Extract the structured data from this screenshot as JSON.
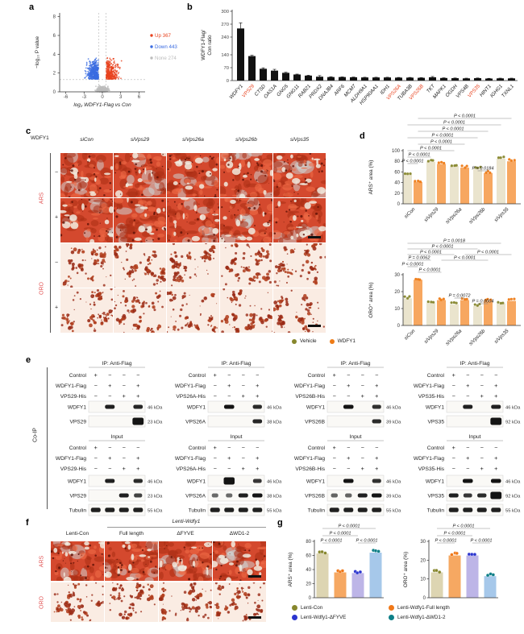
{
  "panels": {
    "a": "a",
    "b": "b",
    "c": "c",
    "d": "d",
    "e": "e",
    "f": "f",
    "g": "g"
  },
  "chart_data": [
    {
      "type": "scatter",
      "name": "volcano",
      "xlabel": "log₂ WDFY1-Flag vs Con",
      "ylabel": "−log₁₀ P value",
      "xlim": [
        -7,
        7
      ],
      "ylim": [
        0,
        8.4
      ],
      "xticks": [
        -6,
        -3,
        0,
        3,
        6
      ],
      "yticks": [
        0,
        2,
        4,
        6,
        8
      ],
      "cutoff_x": [
        -0.6,
        0.6
      ],
      "cutoff_y": 1.3,
      "groups": [
        {
          "label": "Up 367",
          "n": 367,
          "color": "#e8431f"
        },
        {
          "label": "Down 443",
          "n": 443,
          "color": "#3a6be1"
        },
        {
          "label": "None 274",
          "n": 274,
          "color": "#bdbdbd"
        }
      ]
    },
    {
      "type": "bar",
      "name": "ip-ms-ratio",
      "ylabel_lines": [
        "WDFY1-Flag/",
        "Con ratio"
      ],
      "yticks_lower": [
        0,
        70,
        140
      ],
      "yticks_upper": [
        240,
        270,
        300
      ],
      "bar_color": "#111111",
      "categories": [
        "WDFY1",
        "VPS29",
        "CTSD",
        "OAS1A",
        "GNG5",
        "GNG11",
        "RAB21",
        "PRDX2",
        "DNAJB4",
        "ARF6",
        "MCM7",
        "ALDH9A1",
        "HSP90AA1",
        "IDH1",
        "VPS26A",
        "TUBA3B",
        "VPS26B",
        "TKT",
        "MAPK1",
        "OGDH",
        "VPS4B",
        "VPS35",
        "HINT1",
        "IGHG1",
        "TXNL1"
      ],
      "values": [
        260,
        133,
        64,
        54,
        42,
        33,
        27,
        21,
        19,
        19,
        18,
        17,
        17,
        17,
        16,
        16,
        15,
        18,
        14,
        13,
        12,
        13,
        11,
        12,
        12
      ],
      "errors": [
        13,
        4,
        5,
        7,
        3,
        2,
        2,
        6,
        2,
        1,
        1,
        1,
        1,
        1,
        1,
        1,
        1,
        4,
        1,
        1,
        1,
        1,
        1,
        1,
        1
      ],
      "red_labels": [
        "VPS29",
        "VPS26A",
        "VPS26B",
        "VPS35"
      ],
      "red_color": "#e8431f"
    },
    {
      "type": "grouped-bar",
      "name": "ars-area",
      "ylabel": "ARS⁺ area (%)",
      "ylim": [
        0,
        100
      ],
      "yticks": [
        0,
        20,
        40,
        60,
        80,
        100
      ],
      "categories": [
        "siCon",
        "siVps29",
        "siVps26a",
        "siVps26b",
        "siVps35"
      ],
      "series": [
        {
          "name": "Vehicle",
          "color": "#eae4cd",
          "dot": "#87872d",
          "values": [
            55,
            79,
            71,
            66,
            85
          ]
        },
        {
          "name": "WDFY1",
          "color": "#f7a760",
          "dot": "#ee7b16",
          "values": [
            41,
            75,
            68,
            58,
            80
          ]
        }
      ],
      "brackets": [
        {
          "f": 1,
          "t": 9,
          "p": "P < 0.0001",
          "y": 3
        },
        {
          "f": 0,
          "t": 8,
          "p": "P < 0.0001",
          "y": 11
        },
        {
          "f": 1,
          "t": 7,
          "p": "P < 0.0001",
          "y": 19
        },
        {
          "f": 0,
          "t": 6,
          "p": "P < 0.0001",
          "y": 27
        },
        {
          "f": 1,
          "t": 5,
          "p": "P < 0.0001",
          "y": 35
        },
        {
          "f": 0,
          "t": 4,
          "p": "P < 0.0001",
          "y": 43
        },
        {
          "f": 0,
          "t": 2,
          "p": "P < 0.0001",
          "y": 51
        },
        {
          "f": 0,
          "t": 1,
          "p": "P < 0.0001",
          "y": 59
        },
        {
          "f": 6,
          "t": 7,
          "p": "P = 0.0184",
          "y": 68
        }
      ]
    },
    {
      "type": "grouped-bar",
      "name": "oro-area",
      "ylabel": "ORO⁺ area (%)",
      "ylim": [
        0,
        30
      ],
      "yticks": [
        0,
        10,
        20,
        30
      ],
      "categories": [
        "siCon",
        "siVps29",
        "siVps26a",
        "siVps26b",
        "siVps35"
      ],
      "series": [
        {
          "name": "Vehicle",
          "color": "#eae4cd",
          "dot": "#87872d",
          "values": [
            16,
            13.5,
            12.5,
            11.5,
            13
          ]
        },
        {
          "name": "WDFY1",
          "color": "#f7a760",
          "dot": "#ee7b16",
          "values": [
            27,
            15,
            15,
            14.5,
            14.5
          ]
        }
      ],
      "brackets": [
        {
          "f": 0,
          "t": 8,
          "p": "P = 0.0018",
          "y": 4
        },
        {
          "f": 0,
          "t": 6,
          "p": "P < 0.0001",
          "y": 11
        },
        {
          "f": 0,
          "t": 4,
          "p": "P < 0.0001",
          "y": 18
        },
        {
          "f": 5,
          "t": 9,
          "p": "P < 0.0001",
          "y": 18
        },
        {
          "f": 0,
          "t": 2,
          "p": "P = 0.0062",
          "y": 25
        },
        {
          "f": 3,
          "t": 7,
          "p": "P < 0.0001",
          "y": 25
        },
        {
          "f": 0,
          "t": 1,
          "p": "P < 0.0001",
          "y": 33
        },
        {
          "f": 1,
          "t": 3,
          "p": "P < 0.0001",
          "y": 40
        },
        {
          "f": 4,
          "t": 5,
          "p": "P = 0.0072",
          "y": 72
        },
        {
          "f": 6,
          "t": 7,
          "p": "P = 0.0004",
          "y": 79
        }
      ]
    },
    {
      "type": "bar",
      "name": "g-ars-area",
      "ylabel": "ARS⁺ area (%)",
      "ylim": [
        0,
        80
      ],
      "yticks": [
        0,
        20,
        40,
        60,
        80
      ],
      "categories": [
        "Lenti-Con",
        "Lenti-Wdfy1-Full length",
        "Lenti-Wdfy1-ΔFYVE",
        "Lenti-Wdfy1-ΔWD1-2"
      ],
      "values": [
        63,
        36,
        35,
        64
      ],
      "bar_colors": [
        "#ddd5b2",
        "#f6a862",
        "#bdb5e7",
        "#a6c8ea"
      ],
      "dot_colors": [
        "#87872d",
        "#f07818",
        "#2b35cf",
        "#0e7f87"
      ],
      "brackets": [
        {
          "f": 0,
          "t": 3,
          "p": "P < 0.0001",
          "y": 6
        },
        {
          "f": 0,
          "t": 2,
          "p": "P < 0.0001",
          "y": 15
        },
        {
          "f": 0,
          "t": 1,
          "p": "P < 0.0001",
          "y": 24
        },
        {
          "f": 2,
          "t": 3,
          "p": "P < 0.0001",
          "y": 24
        }
      ]
    },
    {
      "type": "bar",
      "name": "g-oro-area",
      "ylabel": "ORO⁺ area (%)",
      "ylim": [
        0,
        30
      ],
      "yticks": [
        0,
        10,
        20,
        30
      ],
      "categories": [
        "Lenti-Con",
        "Lenti-Wdfy1-Full length",
        "Lenti-Wdfy1-ΔFYVE",
        "Lenti-Wdfy1-ΔWD1-2"
      ],
      "values": [
        13.5,
        22.5,
        22.5,
        11.5
      ],
      "bar_colors": [
        "#ddd5b2",
        "#f6a862",
        "#bdb5e7",
        "#a6c8ea"
      ],
      "dot_colors": [
        "#87872d",
        "#f07818",
        "#2b35cf",
        "#0e7f87"
      ],
      "brackets": [
        {
          "f": 0,
          "t": 3,
          "p": "P < 0.0001",
          "y": 6
        },
        {
          "f": 0,
          "t": 2,
          "p": "P < 0.0001",
          "y": 15
        },
        {
          "f": 0,
          "t": 1,
          "p": "P < 0.0001",
          "y": 24
        },
        {
          "f": 2,
          "t": 3,
          "p": "P < 0.0001",
          "y": 24
        }
      ]
    }
  ],
  "panel_c": {
    "gene": "WDFY1",
    "columns": [
      "siCon",
      "siVps29",
      "siVps26a",
      "siVps26b",
      "siVps35"
    ],
    "stains": [
      "ARS",
      "ORO"
    ],
    "doses": [
      "−",
      "+"
    ],
    "stain_color": "#e25555"
  },
  "legend_cd": [
    {
      "label": "Vehicle",
      "color": "#87872d"
    },
    {
      "label": "WDFY1",
      "color": "#ee7b16"
    }
  ],
  "coip": {
    "side": "Co-IP",
    "ip_title": "IP: Anti-Flag",
    "input_title": "Input",
    "signs": [
      [
        "+",
        "−",
        "−",
        "−"
      ],
      [
        "−",
        "+",
        "−",
        "+"
      ],
      [
        "−",
        "−",
        "+",
        "+"
      ]
    ],
    "blocks": [
      {
        "rows": [
          "Control",
          "WDFY1-Flag",
          "VPS29-His"
        ],
        "ip": [
          {
            "label": "WDFY1",
            "kda": "46 kDa",
            "bands": [
              0,
              1,
              0,
              0.95
            ]
          },
          {
            "label": "VPS29",
            "kda": "23 kDa",
            "bands": [
              0,
              0,
              0,
              1.35
            ]
          }
        ],
        "input": [
          {
            "label": "WDFY1",
            "kda": "46 kDa",
            "bands": [
              0,
              1,
              0,
              0.9
            ]
          },
          {
            "label": "VPS29",
            "kda": "23 kDa",
            "bands": [
              0,
              0,
              1,
              0.7
            ]
          },
          {
            "label": "Tubulin",
            "kda": "55 kDa",
            "bands": [
              1,
              1,
              1,
              1
            ]
          }
        ]
      },
      {
        "rows": [
          "Control",
          "WDFY1-Flag",
          "VPS26A-His"
        ],
        "ip": [
          {
            "label": "WDFY1",
            "kda": "46 kDa",
            "bands": [
              0,
              1.1,
              0,
              0.9
            ]
          },
          {
            "label": "VPS26A",
            "kda": "38 kDa",
            "bands": [
              0,
              0,
              0,
              0.95
            ]
          }
        ],
        "input": [
          {
            "label": "WDFY1",
            "kda": "46 kDa",
            "bands": [
              0,
              1.25,
              0,
              0.8
            ]
          },
          {
            "label": "VPS26A",
            "kda": "38 kDa",
            "bands": [
              0.35,
              0.35,
              1,
              1.1
            ]
          },
          {
            "label": "Tubulin",
            "kda": "55 kDa",
            "bands": [
              1,
              1,
              1,
              1
            ]
          }
        ]
      },
      {
        "rows": [
          "Control",
          "WDFY1-Flag",
          "VPS26B-His"
        ],
        "ip": [
          {
            "label": "WDFY1",
            "kda": "46 kDa",
            "bands": [
              0,
              1.1,
              0,
              0.85
            ]
          },
          {
            "label": "VPS26B",
            "kda": "39 kDa",
            "bands": [
              0,
              0,
              0,
              0.9
            ]
          }
        ],
        "input": [
          {
            "label": "WDFY1",
            "kda": "46 kDa",
            "bands": [
              0,
              1.1,
              0,
              0.85
            ]
          },
          {
            "label": "VPS26B",
            "kda": "39 kDa",
            "bands": [
              0.4,
              0.4,
              1,
              1.1
            ]
          },
          {
            "label": "Tubulin",
            "kda": "55 kDa",
            "bands": [
              1,
              1,
              1,
              1
            ]
          }
        ]
      },
      {
        "rows": [
          "Control",
          "WDFY1-Flag",
          "VPS35-His"
        ],
        "ip": [
          {
            "label": "WDFY1",
            "kda": "46 kDa",
            "bands": [
              0,
              1,
              0,
              1
            ]
          },
          {
            "label": "VPS35",
            "kda": "92 kDa",
            "bands": [
              0,
              0,
              0,
              1.4
            ]
          }
        ],
        "input": [
          {
            "label": "WDFY1",
            "kda": "46 kDa",
            "bands": [
              0,
              1.1,
              0,
              1.1
            ]
          },
          {
            "label": "VPS35",
            "kda": "92 kDa",
            "bands": [
              1,
              0.8,
              0.9,
              1.3
            ]
          },
          {
            "label": "Tubulin",
            "kda": "55 kDa",
            "bands": [
              1,
              1,
              1,
              1
            ]
          }
        ]
      }
    ]
  },
  "panel_f": {
    "header": "Lenti-Wdfy1",
    "columns": [
      "Lenti-Con",
      "Full length",
      "ΔFYVE",
      "ΔWD1-2"
    ],
    "stains": [
      "ARS",
      "ORO"
    ]
  },
  "legend_g": [
    {
      "label": "Lenti-Con",
      "color": "#87872d"
    },
    {
      "label": "Lenti-Wdfy1-Full length",
      "color": "#f07818"
    },
    {
      "label": "Lenti-Wdfy1-ΔFYVE",
      "color": "#2b35cf"
    },
    {
      "label": "Lenti-Wdfy1-ΔWD1-2",
      "color": "#0e7f87"
    }
  ]
}
